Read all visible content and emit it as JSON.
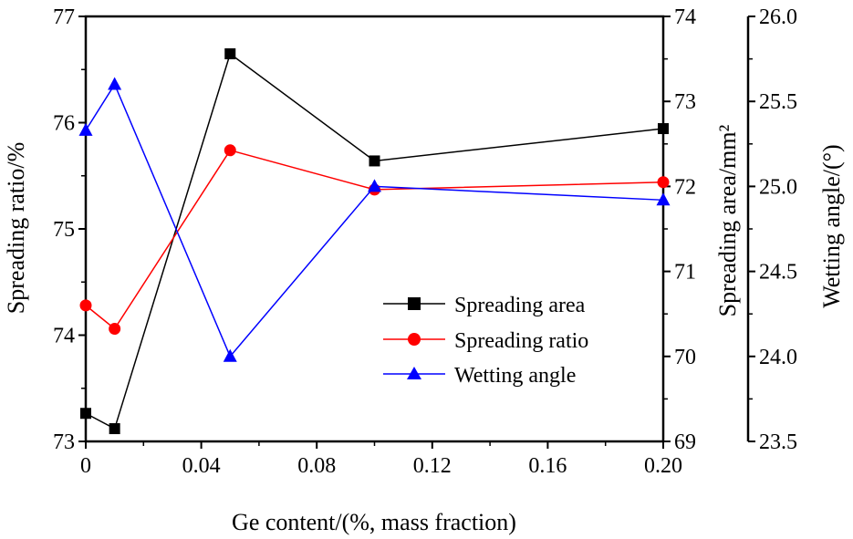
{
  "chart_data": {
    "type": "line",
    "xlabel": "Ge content/(%, mass fraction)",
    "x_ticks": [
      "0",
      "0.04",
      "0.08",
      "0.12",
      "0.16",
      "0.20"
    ],
    "xlim": [
      0,
      0.2
    ],
    "x": [
      0,
      0.01,
      0.05,
      0.1,
      0.2
    ],
    "axes": {
      "left": {
        "label": "Spreading ratio/%",
        "ylim": [
          73,
          77
        ],
        "ticks": [
          "73",
          "74",
          "75",
          "76",
          "77"
        ]
      },
      "right1": {
        "label": "Spreading area/mm²",
        "ylim": [
          69,
          74
        ],
        "ticks": [
          "69",
          "70",
          "71",
          "72",
          "73",
          "74"
        ]
      },
      "right2": {
        "label": "Wetting angle/(°)",
        "ylim": [
          23.5,
          26.0
        ],
        "ticks": [
          "23.5",
          "24.0",
          "24.5",
          "25.0",
          "25.5",
          "26.0"
        ]
      }
    },
    "series": [
      {
        "name": "Spreading area",
        "axis": "right1",
        "color": "#000000",
        "marker": "square",
        "values": [
          69.33,
          69.15,
          73.56,
          72.3,
          72.68
        ]
      },
      {
        "name": "Spreading ratio",
        "axis": "left",
        "color": "#ff0000",
        "marker": "circle",
        "values": [
          74.28,
          74.06,
          75.74,
          75.37,
          75.44
        ]
      },
      {
        "name": "Wetting angle",
        "axis": "right2",
        "color": "#0000ff",
        "marker": "triangle",
        "values": [
          25.33,
          25.6,
          24.0,
          25.0,
          24.92
        ]
      }
    ],
    "legend_position": "bottom-right",
    "grid": false
  }
}
